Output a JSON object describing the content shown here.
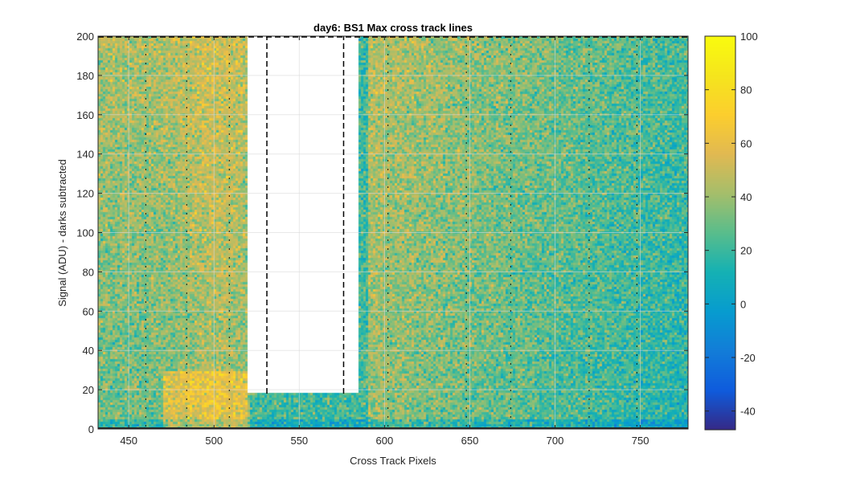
{
  "chart_data": {
    "type": "heatmap",
    "title": "day6: BS1  Max cross track lines",
    "xlabel": "Cross Track Pixels",
    "ylabel": "Signal (ADU) - darks subtracted",
    "xlim": [
      432,
      778
    ],
    "ylim": [
      0,
      200
    ],
    "xticks": [
      450,
      500,
      550,
      600,
      650,
      700,
      750
    ],
    "yticks": [
      0,
      20,
      40,
      60,
      80,
      100,
      120,
      140,
      160,
      180,
      200
    ],
    "grid": true,
    "colormap": "parula",
    "colorbar": {
      "clim": [
        -47,
        100
      ],
      "ticks": [
        -40,
        -20,
        0,
        20,
        40,
        60,
        80,
        100
      ]
    },
    "blank_region": {
      "x_start": 519,
      "x_end": 584,
      "floor_signal": 19
    },
    "dashed_box": {
      "x_start": 531,
      "x_end": 576,
      "y_bottom": 18,
      "y_top": 200
    },
    "dashed_vertical_lines_x": [
      460,
      484,
      509,
      602,
      648,
      674,
      720,
      748
    ],
    "grid_x_ticks": [
      450,
      500,
      550,
      600,
      650,
      700,
      750
    ],
    "grid_y_ticks": [
      20,
      40,
      60,
      80,
      100,
      120,
      140,
      160,
      180,
      200
    ],
    "ticks_x_labels": [
      "450",
      "500",
      "550",
      "600",
      "650",
      "700",
      "750"
    ],
    "ticks_y_labels": [
      "0",
      "20",
      "40",
      "60",
      "80",
      "100",
      "120",
      "140",
      "160",
      "180",
      "200"
    ],
    "colorbar_tick_labels": [
      "-40",
      "-20",
      "0",
      "20",
      "40",
      "60",
      "80",
      "100"
    ]
  },
  "colors": {
    "axes": "#262626",
    "grid": "#d9d9d9",
    "dashed": "#000000"
  }
}
